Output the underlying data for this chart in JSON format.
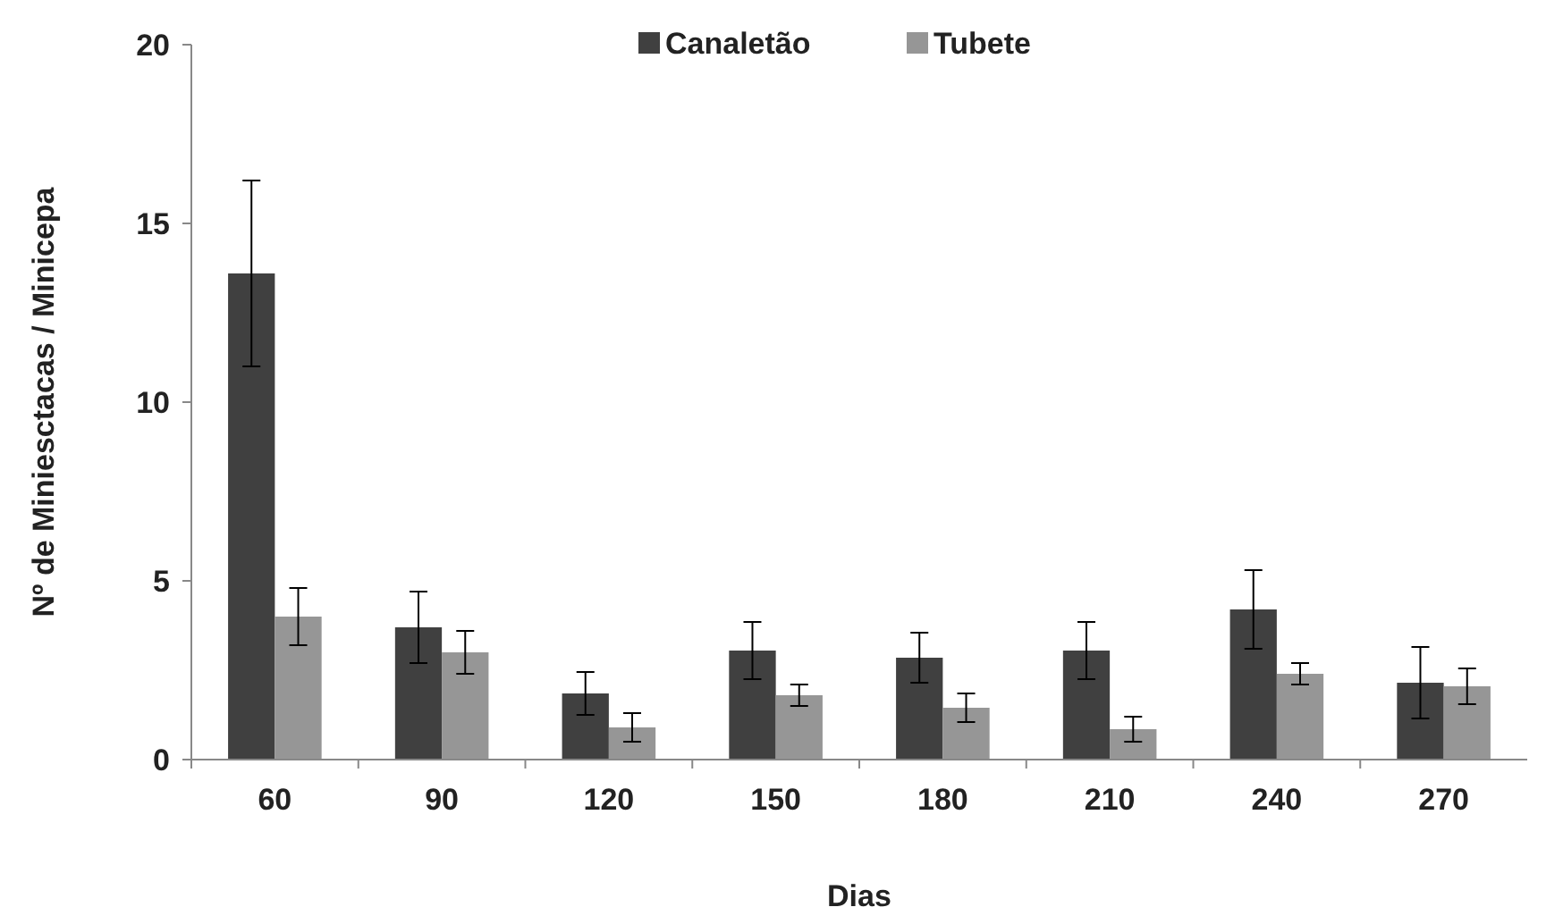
{
  "chart_data": {
    "type": "bar",
    "xlabel": "Dias",
    "ylabel": "Nº de Miniesctacas / Minicepa",
    "categories": [
      "60",
      "90",
      "120",
      "150",
      "180",
      "210",
      "240",
      "270"
    ],
    "series": [
      {
        "name": "Canaletão",
        "color": "#404040",
        "values": [
          13.6,
          3.7,
          1.85,
          3.05,
          2.85,
          3.05,
          4.2,
          2.15
        ],
        "errors": [
          2.6,
          1.0,
          0.6,
          0.8,
          0.7,
          0.8,
          1.1,
          1.0
        ]
      },
      {
        "name": "Tubete",
        "color": "#969696",
        "values": [
          4.0,
          3.0,
          0.9,
          1.8,
          1.45,
          0.85,
          2.4,
          2.05
        ],
        "errors": [
          0.8,
          0.6,
          0.4,
          0.3,
          0.4,
          0.35,
          0.3,
          0.5
        ]
      }
    ],
    "ylim": [
      0,
      20
    ],
    "yticks": [
      0,
      5,
      10,
      15,
      20
    ],
    "grid": false,
    "legend": "top"
  }
}
